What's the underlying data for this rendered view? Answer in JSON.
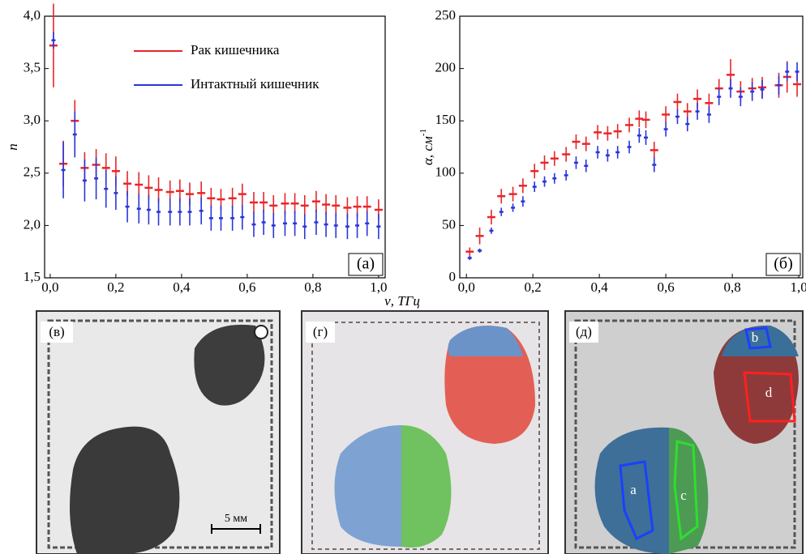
{
  "chart_data": [
    {
      "type": "errorbar",
      "ylabel": "n",
      "xlabel": "ν, ТГц",
      "panel_label": "(а)",
      "legend": "upper center",
      "xlim": [
        -0.017,
        1.02
      ],
      "ylim": [
        1.5,
        4.0
      ],
      "xticks": [
        {
          "value": 0,
          "label": "0,0"
        },
        {
          "value": 0.2,
          "label": "0,2"
        },
        {
          "value": 0.4,
          "label": "0,4"
        },
        {
          "value": 0.6,
          "label": "0,6"
        },
        {
          "value": 0.8,
          "label": "0,8"
        },
        {
          "value": 1.0,
          "label": "1,0"
        }
      ],
      "yticks": [
        {
          "value": 1.5,
          "label": "1,5"
        },
        {
          "value": 2.0,
          "label": "2,0"
        },
        {
          "value": 2.5,
          "label": "2,5"
        },
        {
          "value": 3.0,
          "label": "3,0"
        },
        {
          "value": 3.5,
          "label": "3,5"
        },
        {
          "value": 4.0,
          "label": "4,0"
        }
      ],
      "x": [
        0.01,
        0.04,
        0.075,
        0.105,
        0.14,
        0.17,
        0.2,
        0.235,
        0.27,
        0.3,
        0.33,
        0.365,
        0.395,
        0.425,
        0.46,
        0.49,
        0.52,
        0.555,
        0.585,
        0.62,
        0.65,
        0.68,
        0.715,
        0.745,
        0.775,
        0.81,
        0.84,
        0.87,
        0.905,
        0.935,
        0.965,
        1.0
      ],
      "series": [
        {
          "name": "Рак кишечника",
          "color": "#e8262a",
          "values": [
            3.72,
            2.59,
            3.0,
            2.55,
            2.58,
            2.55,
            2.52,
            2.4,
            2.39,
            2.36,
            2.34,
            2.32,
            2.33,
            2.3,
            2.31,
            2.26,
            2.25,
            2.26,
            2.3,
            2.22,
            2.22,
            2.19,
            2.21,
            2.21,
            2.19,
            2.23,
            2.2,
            2.19,
            2.17,
            2.18,
            2.18,
            2.15
          ],
          "errors": [
            0.4,
            0.22,
            0.2,
            0.15,
            0.15,
            0.14,
            0.14,
            0.12,
            0.12,
            0.12,
            0.12,
            0.11,
            0.11,
            0.11,
            0.11,
            0.1,
            0.1,
            0.1,
            0.1,
            0.1,
            0.1,
            0.1,
            0.1,
            0.1,
            0.1,
            0.1,
            0.1,
            0.1,
            0.1,
            0.1,
            0.1,
            0.1
          ]
        },
        {
          "name": "Интактный кишечник",
          "color": "#2a35d8",
          "values": [
            3.77,
            2.53,
            2.87,
            2.43,
            2.45,
            2.35,
            2.31,
            2.18,
            2.16,
            2.15,
            2.13,
            2.13,
            2.13,
            2.13,
            2.14,
            2.07,
            2.07,
            2.07,
            2.08,
            2.01,
            2.03,
            2.0,
            2.02,
            2.02,
            1.99,
            2.03,
            2.01,
            2.0,
            1.99,
            2.0,
            2.02,
            1.99
          ],
          "errors": [
            0.08,
            0.27,
            0.22,
            0.2,
            0.2,
            0.18,
            0.16,
            0.15,
            0.14,
            0.14,
            0.13,
            0.13,
            0.13,
            0.13,
            0.13,
            0.12,
            0.12,
            0.12,
            0.12,
            0.12,
            0.12,
            0.12,
            0.12,
            0.12,
            0.12,
            0.12,
            0.12,
            0.12,
            0.12,
            0.12,
            0.12,
            0.12
          ]
        }
      ]
    },
    {
      "type": "errorbar",
      "ylabel": "α, см",
      "ylabel_sup": "-1",
      "panel_label": "(б)",
      "xlim": [
        -0.02,
        1.012
      ],
      "ylim": [
        0,
        250
      ],
      "xticks": [
        {
          "value": 0,
          "label": "0,0"
        },
        {
          "value": 0.2,
          "label": "0,2"
        },
        {
          "value": 0.4,
          "label": "0,4"
        },
        {
          "value": 0.6,
          "label": "0,6"
        },
        {
          "value": 0.8,
          "label": "0,8"
        },
        {
          "value": 1.0,
          "label": "1,0"
        }
      ],
      "yticks": [
        0,
        50,
        100,
        150,
        200,
        250
      ],
      "x": [
        0.01,
        0.04,
        0.075,
        0.105,
        0.14,
        0.17,
        0.205,
        0.235,
        0.265,
        0.3,
        0.33,
        0.36,
        0.395,
        0.425,
        0.455,
        0.49,
        0.52,
        0.54,
        0.565,
        0.6,
        0.635,
        0.665,
        0.695,
        0.73,
        0.76,
        0.795,
        0.825,
        0.86,
        0.89,
        0.94,
        0.965,
        0.995
      ],
      "series": [
        {
          "name": "Рак кишечника",
          "color": "#e8262a",
          "values": [
            25,
            40,
            58,
            78,
            80,
            88,
            102,
            110,
            114,
            118,
            130,
            128,
            139,
            138,
            140,
            146,
            152,
            151,
            122,
            156,
            168,
            159,
            171,
            167,
            181,
            194,
            178,
            181,
            182,
            184,
            192,
            185
          ],
          "errors": [
            4,
            8,
            7,
            7,
            7,
            7,
            7,
            7,
            7,
            7,
            7,
            7,
            7,
            7,
            7,
            7,
            8,
            8,
            8,
            8,
            8,
            8,
            9,
            9,
            9,
            15,
            10,
            10,
            10,
            12,
            15,
            12
          ]
        },
        {
          "name": "Интактный кишечник",
          "color": "#2a35d8",
          "values": [
            19,
            26,
            45,
            63,
            67,
            73,
            87,
            92,
            95,
            98,
            110,
            107,
            120,
            117,
            120,
            125,
            136,
            134,
            108,
            142,
            154,
            147,
            159,
            156,
            173,
            181,
            173,
            178,
            180,
            184,
            197,
            197
          ],
          "errors": [
            2,
            2,
            3,
            4,
            4,
            5,
            5,
            5,
            5,
            5,
            6,
            6,
            6,
            6,
            6,
            6,
            7,
            7,
            7,
            7,
            7,
            7,
            8,
            8,
            8,
            9,
            9,
            9,
            9,
            9,
            9,
            9
          ]
        }
      ]
    }
  ],
  "panels": [
    {
      "label": "(в)",
      "scale_bar": "5 мм"
    },
    {
      "label": "(г)"
    },
    {
      "label": "(д)",
      "regions": [
        "a",
        "b",
        "c",
        "d"
      ]
    }
  ]
}
